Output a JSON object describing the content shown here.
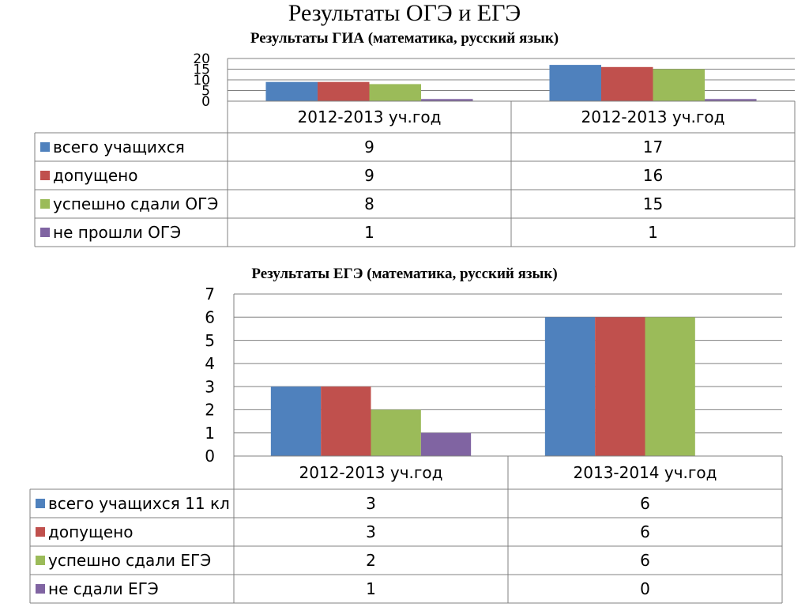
{
  "page": {
    "title": "Результаты ОГЭ и ЕГЭ"
  },
  "chart_data": [
    {
      "type": "bar",
      "title": "Результаты ГИА (математика, русский язык)",
      "categories": [
        "2012-2013 уч.год",
        "2012-2013 уч.год"
      ],
      "ylim": [
        0,
        20
      ],
      "yticks": [
        0,
        5,
        10,
        15,
        20
      ],
      "grid": true,
      "legend": "data-table-left",
      "series": [
        {
          "name": "всего учащихся",
          "color": "#4F81BD",
          "values": [
            9,
            17
          ]
        },
        {
          "name": "допущено",
          "color": "#C0504D",
          "values": [
            9,
            16
          ]
        },
        {
          "name": "успешно сдали ОГЭ",
          "color": "#9BBB59",
          "values": [
            8,
            15
          ]
        },
        {
          "name": "не прошли ОГЭ",
          "color": "#8064A2",
          "values": [
            1,
            1
          ]
        }
      ]
    },
    {
      "type": "bar",
      "title": "Результаты ЕГЭ (математика, русский язык)",
      "categories": [
        "2012-2013 уч.год",
        "2013-2014 уч.год"
      ],
      "ylim": [
        0,
        7
      ],
      "yticks": [
        0,
        1,
        2,
        3,
        4,
        5,
        6,
        7
      ],
      "grid": true,
      "legend": "data-table-left",
      "series": [
        {
          "name": "всего учащихся 11 кл",
          "color": "#4F81BD",
          "values": [
            3,
            6
          ]
        },
        {
          "name": "допущено",
          "color": "#C0504D",
          "values": [
            3,
            6
          ]
        },
        {
          "name": "успешно сдали ЕГЭ",
          "color": "#9BBB59",
          "values": [
            2,
            6
          ]
        },
        {
          "name": "не сдали ЕГЭ",
          "color": "#8064A2",
          "values": [
            1,
            0
          ]
        }
      ]
    }
  ]
}
